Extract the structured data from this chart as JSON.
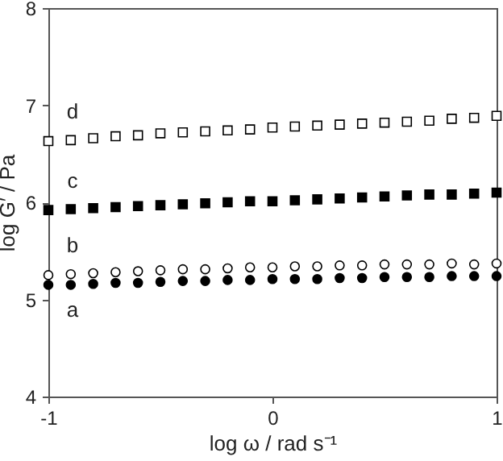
{
  "chart_data": {
    "type": "scatter",
    "xlabel": "log ω / rad s⁻¹",
    "ylabel": "log G′ / Pa",
    "x": [
      -1,
      -0.9,
      -0.8,
      -0.7,
      -0.6,
      -0.5,
      -0.4,
      -0.3,
      -0.2,
      -0.1,
      0,
      0.1,
      0.2,
      0.3,
      0.4,
      0.5,
      0.6,
      0.7,
      0.8,
      0.9,
      1
    ],
    "series": [
      {
        "name": "a",
        "color": "#000000",
        "marker": "circle",
        "values": [
          5.15,
          5.15,
          5.16,
          5.17,
          5.17,
          5.18,
          5.19,
          5.19,
          5.2,
          5.2,
          5.21,
          5.21,
          5.21,
          5.22,
          5.22,
          5.23,
          5.23,
          5.23,
          5.24,
          5.24,
          5.24
        ]
      },
      {
        "name": "b",
        "color": "#ffffff",
        "marker": "circle",
        "values": [
          5.25,
          5.26,
          5.27,
          5.28,
          5.29,
          5.3,
          5.31,
          5.31,
          5.32,
          5.33,
          5.33,
          5.34,
          5.34,
          5.35,
          5.35,
          5.36,
          5.36,
          5.36,
          5.37,
          5.36,
          5.37
        ]
      },
      {
        "name": "c",
        "color": "#000000",
        "marker": "square",
        "values": [
          5.92,
          5.93,
          5.94,
          5.95,
          5.96,
          5.97,
          5.98,
          5.99,
          6.0,
          6.01,
          6.01,
          6.02,
          6.03,
          6.04,
          6.05,
          6.06,
          6.07,
          6.08,
          6.08,
          6.09,
          6.1
        ]
      },
      {
        "name": "d",
        "color": "#ffffff",
        "marker": "square",
        "values": [
          6.63,
          6.64,
          6.66,
          6.68,
          6.69,
          6.71,
          6.72,
          6.73,
          6.74,
          6.75,
          6.77,
          6.78,
          6.79,
          6.8,
          6.81,
          6.82,
          6.83,
          6.84,
          6.86,
          6.87,
          6.89
        ]
      }
    ],
    "xlim": [
      -1,
      1
    ],
    "xticks": [
      -1,
      0,
      1
    ],
    "ylim": [
      4,
      8
    ],
    "yticks": [
      4,
      5,
      6,
      7,
      8
    ],
    "grid": false
  }
}
